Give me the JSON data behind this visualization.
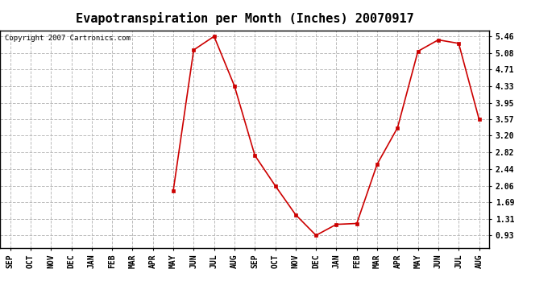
{
  "title": "Evapotranspiration per Month (Inches) 20070917",
  "copyright": "Copyright 2007 Cartronics.com",
  "months": [
    "SEP",
    "OCT",
    "NOV",
    "DEC",
    "JAN",
    "FEB",
    "MAR",
    "APR",
    "MAY",
    "JUN",
    "JUL",
    "AUG",
    "SEP",
    "OCT",
    "NOV",
    "DEC",
    "JAN",
    "FEB",
    "MAR",
    "APR",
    "MAY",
    "JUN",
    "JUL",
    "AUG"
  ],
  "values": [
    null,
    null,
    null,
    null,
    null,
    null,
    null,
    null,
    1.95,
    5.15,
    5.46,
    4.33,
    2.75,
    2.06,
    1.4,
    0.93,
    1.18,
    1.2,
    2.55,
    3.38,
    5.12,
    5.38,
    5.3,
    3.57
  ],
  "yticks": [
    0.93,
    1.31,
    1.69,
    2.06,
    2.44,
    2.82,
    3.2,
    3.57,
    3.95,
    4.33,
    4.71,
    5.08,
    5.46
  ],
  "line_color": "#cc0000",
  "marker": "s",
  "marker_size": 3,
  "background_color": "#ffffff",
  "grid_color": "#bbbbbb",
  "title_fontsize": 11,
  "tick_fontsize": 7,
  "copyright_fontsize": 6.5
}
